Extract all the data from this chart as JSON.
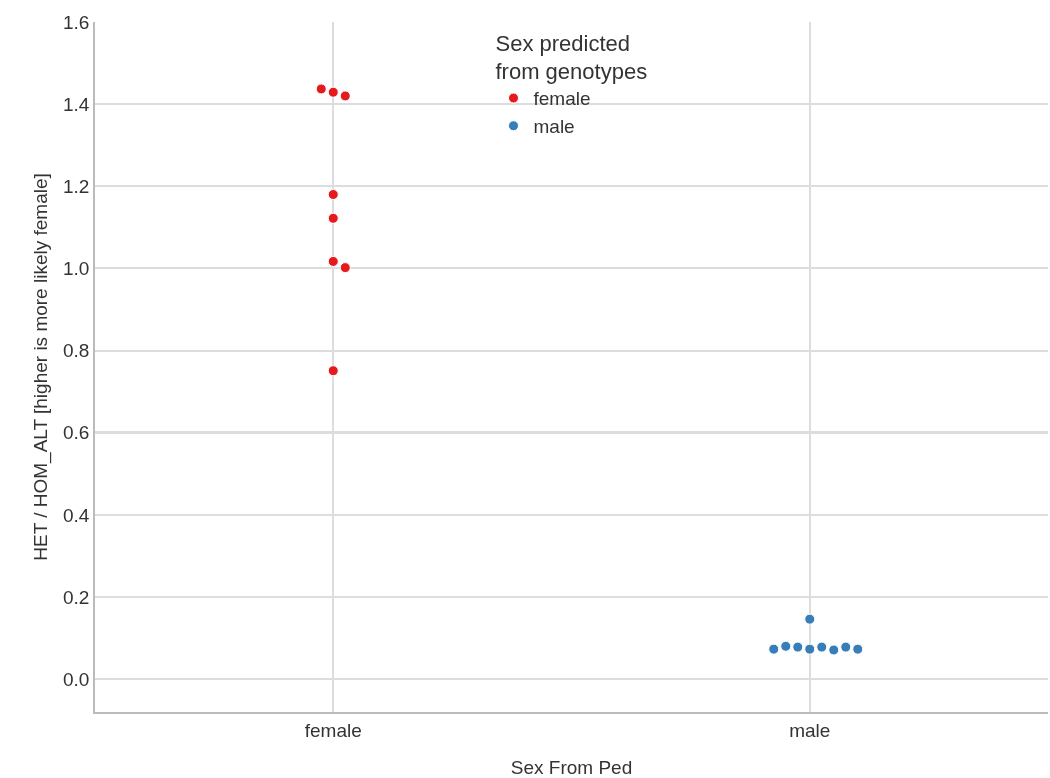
{
  "chart_data": {
    "type": "scatter",
    "xlabel": "Sex From Ped",
    "ylabel": "HET / HOM_ALT [higher is more likely female]",
    "legend_title": "Sex predicted\nfrom genotypes",
    "categories": [
      "female",
      "male"
    ],
    "ylim": [
      -0.08,
      1.6
    ],
    "yticks": [
      {
        "value": 0,
        "label": "0.0"
      },
      0.2,
      0.4,
      0.6,
      0.8,
      {
        "value": 1,
        "label": "1.0"
      },
      1.2,
      1.4,
      1.6
    ],
    "series": [
      {
        "name": "female",
        "color": "#e41a1c",
        "x": [
          "female",
          "female",
          "female",
          "female",
          "female",
          "female",
          "female",
          "female"
        ],
        "values": [
          0.751,
          1.429,
          1.017,
          1.18,
          1.002,
          1.42,
          1.122,
          1.437
        ]
      },
      {
        "name": "male",
        "color": "#377eb8",
        "x": [
          "male",
          "male",
          "male",
          "male",
          "male",
          "male",
          "male",
          "male",
          "male"
        ],
        "values": [
          0.073,
          0.146,
          0.078,
          0.078,
          0.071,
          0.078,
          0.08,
          0.073,
          0.073
        ]
      }
    ],
    "ref_lines": [
      {
        "axis": "y",
        "value": 0.6,
        "color": "#bbbbbb"
      }
    ],
    "grid": true,
    "legend": "top",
    "marker": "circle"
  }
}
